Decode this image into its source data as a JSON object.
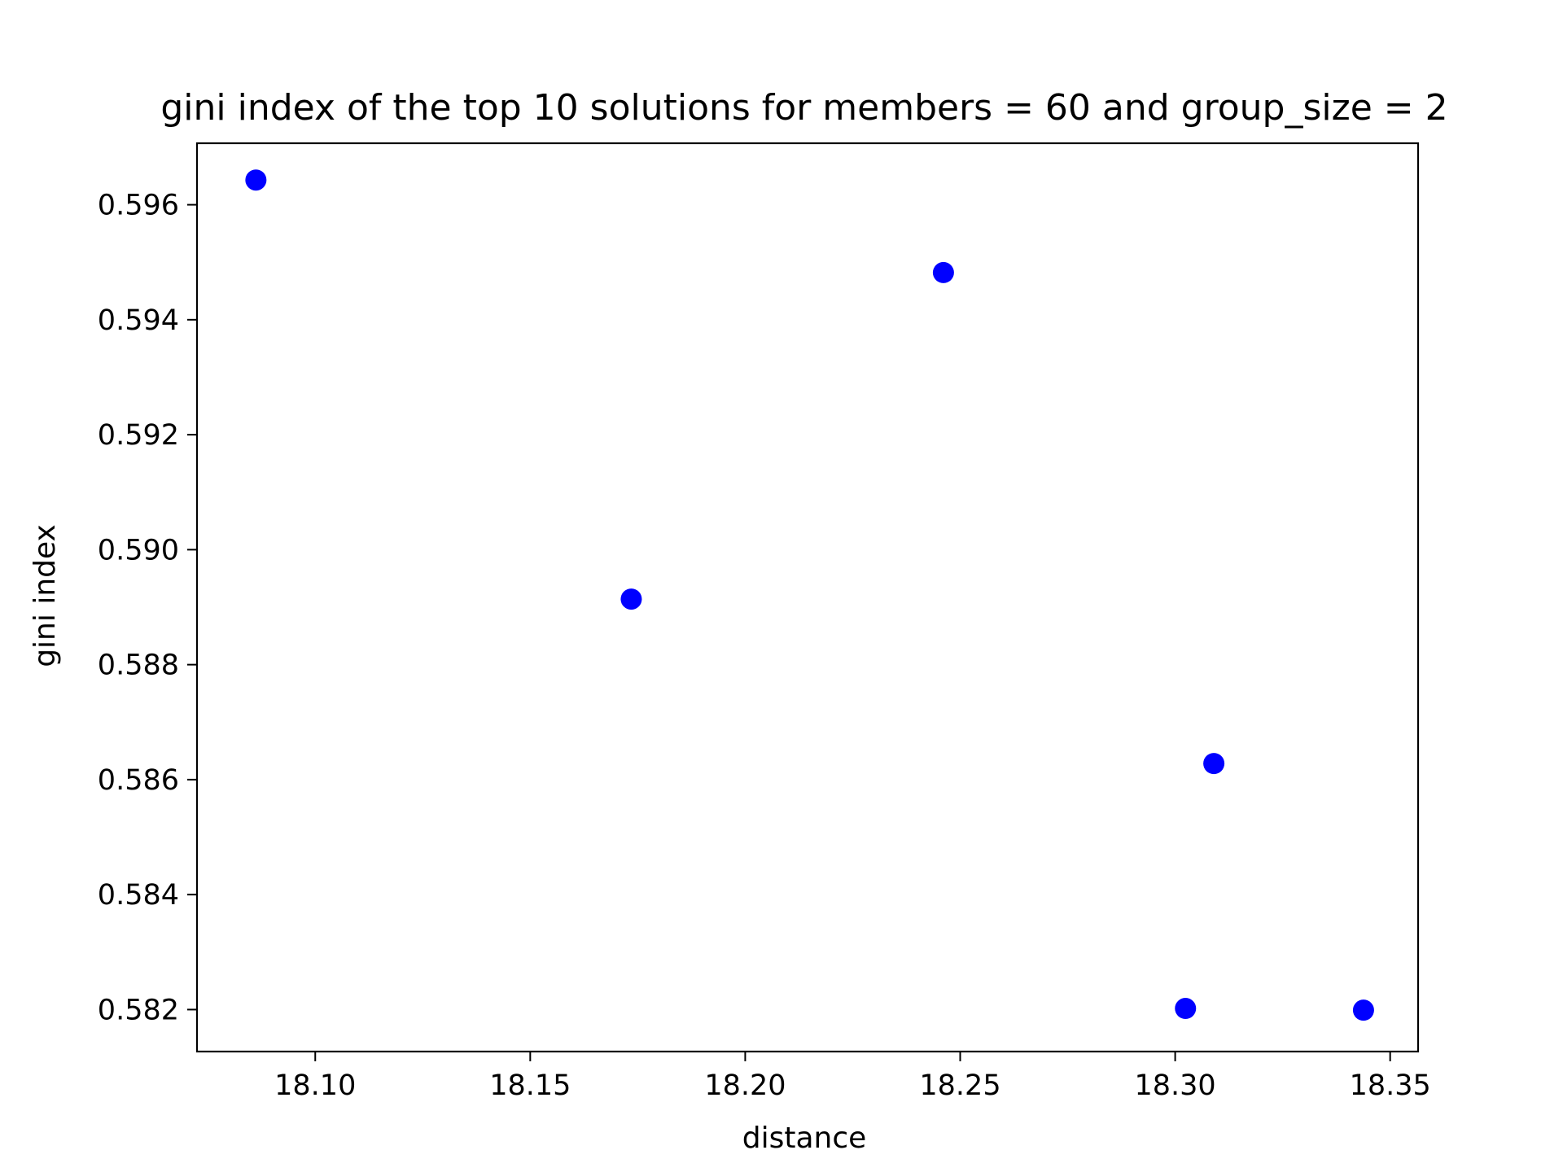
{
  "chart_data": {
    "type": "scatter",
    "title": "gini index of the top 10 solutions for members = 60 and group_size = 2",
    "xlabel": "distance",
    "ylabel": "gini index",
    "xlim": [
      18.0725,
      18.3565
    ],
    "ylim": [
      0.58127,
      0.59707
    ],
    "xticks": [
      18.1,
      18.15,
      18.2,
      18.25,
      18.3,
      18.35
    ],
    "xtick_labels": [
      "18.10",
      "18.15",
      "18.20",
      "18.25",
      "18.30",
      "18.35"
    ],
    "yticks": [
      0.582,
      0.584,
      0.586,
      0.588,
      0.59,
      0.592,
      0.594,
      0.596
    ],
    "ytick_labels": [
      "0.582",
      "0.584",
      "0.586",
      "0.588",
      "0.590",
      "0.592",
      "0.594",
      "0.596"
    ],
    "grid": false,
    "legend": "none",
    "marker_color": "#0000ff",
    "series": [
      {
        "x": [
          18.0862,
          18.1735,
          18.2461,
          18.309,
          18.3024,
          18.3438
        ],
        "y": [
          0.59643,
          0.58914,
          0.59482,
          0.58628,
          0.58202,
          0.58199
        ]
      }
    ]
  }
}
